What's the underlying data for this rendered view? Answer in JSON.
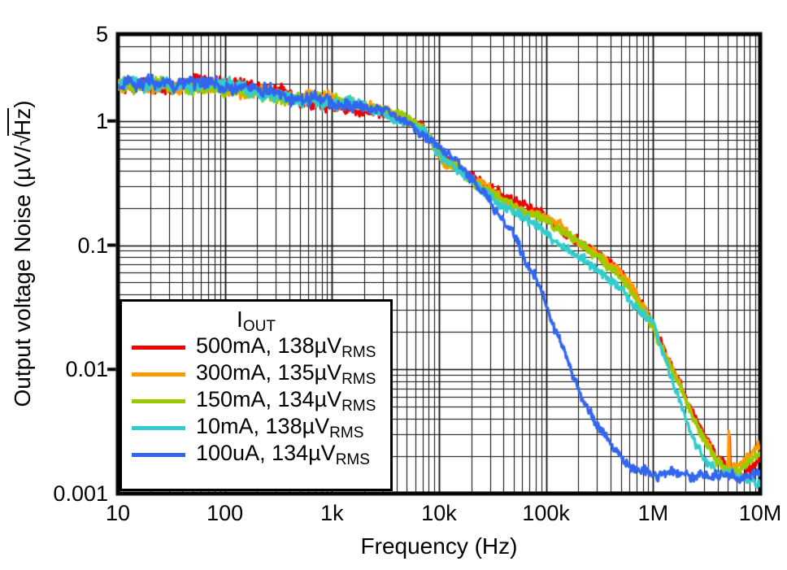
{
  "chart_data": {
    "type": "line",
    "title": "",
    "xlabel": "Frequency (Hz)",
    "ylabel": "Output voltage Noise (µV/√Hz)",
    "ylabel_pre": "Output voltage Noise (µV/",
    "ylabel_sqrt": "√",
    "ylabel_sqrt_arg": "Hz",
    "ylabel_post": ")",
    "x_scale": "log",
    "y_scale": "log",
    "xlim": [
      10,
      10000000
    ],
    "ylim": [
      0.001,
      5
    ],
    "grid": {
      "major": true,
      "minor": true,
      "color": "#000000"
    },
    "frame_color": "#000000",
    "x_ticks": [
      {
        "value": 10,
        "label": "10"
      },
      {
        "value": 100,
        "label": "100"
      },
      {
        "value": 1000,
        "label": "1k"
      },
      {
        "value": 10000,
        "label": "10k"
      },
      {
        "value": 100000,
        "label": "100k"
      },
      {
        "value": 1000000,
        "label": "1M"
      },
      {
        "value": 10000000,
        "label": "10M"
      }
    ],
    "y_ticks": [
      {
        "value": 5,
        "label": "5"
      },
      {
        "value": 1,
        "label": "1"
      },
      {
        "value": 0.1,
        "label": "0.1"
      },
      {
        "value": 0.01,
        "label": "0.01"
      },
      {
        "value": 0.001,
        "label": "0.001"
      }
    ],
    "legend": {
      "position": "bottom-left",
      "title_main": "I",
      "title_sub": "OUT"
    },
    "noise_amp_dec": 0.045,
    "line_width": 3.4,
    "series": [
      {
        "name": "500mA",
        "legend_main": "500mA, 138µV",
        "legend_sub": "RMS",
        "color": "#ee0000",
        "points": [
          [
            10,
            1.9
          ],
          [
            20,
            1.95
          ],
          [
            30,
            2.0
          ],
          [
            50,
            1.95
          ],
          [
            70,
            1.9
          ],
          [
            100,
            1.85
          ],
          [
            150,
            1.8
          ],
          [
            200,
            1.75
          ],
          [
            300,
            1.65
          ],
          [
            500,
            1.55
          ],
          [
            700,
            1.5
          ],
          [
            1000,
            1.4
          ],
          [
            1500,
            1.32
          ],
          [
            2000,
            1.27
          ],
          [
            3000,
            1.18
          ],
          [
            5000,
            1.0
          ],
          [
            7000,
            0.83
          ],
          [
            10000,
            0.52
          ],
          [
            15000,
            0.4
          ],
          [
            20000,
            0.34
          ],
          [
            30000,
            0.27
          ],
          [
            50000,
            0.21
          ],
          [
            70000,
            0.185
          ],
          [
            100000,
            0.16
          ],
          [
            150000,
            0.13
          ],
          [
            220000,
            0.105
          ],
          [
            300000,
            0.085
          ],
          [
            400000,
            0.068
          ],
          [
            500000,
            0.056
          ],
          [
            700000,
            0.038
          ],
          [
            1000000,
            0.021
          ],
          [
            1300000,
            0.013
          ],
          [
            1700000,
            0.008
          ],
          [
            2200000,
            0.005
          ],
          [
            3000000,
            0.0028
          ],
          [
            4000000,
            0.0019
          ],
          [
            5000000,
            0.00155
          ],
          [
            5150000,
            0.0019
          ],
          [
            5200000,
            0.0045
          ],
          [
            5250000,
            0.0019
          ],
          [
            5500000,
            0.0015
          ],
          [
            7000000,
            0.0015
          ],
          [
            10000000,
            0.002
          ]
        ]
      },
      {
        "name": "300mA",
        "legend_main": "300mA, 135µV",
        "legend_sub": "RMS",
        "color": "#ff9900",
        "points": [
          [
            10,
            1.9
          ],
          [
            20,
            1.95
          ],
          [
            30,
            2.0
          ],
          [
            50,
            1.95
          ],
          [
            70,
            1.9
          ],
          [
            100,
            1.85
          ],
          [
            150,
            1.8
          ],
          [
            200,
            1.75
          ],
          [
            300,
            1.65
          ],
          [
            500,
            1.55
          ],
          [
            700,
            1.5
          ],
          [
            1000,
            1.4
          ],
          [
            1500,
            1.32
          ],
          [
            2000,
            1.27
          ],
          [
            3000,
            1.18
          ],
          [
            5000,
            1.0
          ],
          [
            7000,
            0.83
          ],
          [
            10000,
            0.52
          ],
          [
            15000,
            0.4
          ],
          [
            20000,
            0.34
          ],
          [
            30000,
            0.27
          ],
          [
            50000,
            0.21
          ],
          [
            70000,
            0.185
          ],
          [
            100000,
            0.16
          ],
          [
            150000,
            0.13
          ],
          [
            220000,
            0.105
          ],
          [
            300000,
            0.085
          ],
          [
            400000,
            0.068
          ],
          [
            500000,
            0.056
          ],
          [
            700000,
            0.038
          ],
          [
            1000000,
            0.021
          ],
          [
            1300000,
            0.013
          ],
          [
            1700000,
            0.008
          ],
          [
            2200000,
            0.005
          ],
          [
            3000000,
            0.0028
          ],
          [
            4000000,
            0.0019
          ],
          [
            5000000,
            0.0016
          ],
          [
            5100000,
            0.0035
          ],
          [
            5200000,
            0.0016
          ],
          [
            7000000,
            0.0019
          ],
          [
            10000000,
            0.0026
          ]
        ]
      },
      {
        "name": "150mA",
        "legend_main": "150mA, 134µV",
        "legend_sub": "RMS",
        "color": "#99cc00",
        "points": [
          [
            10,
            1.9
          ],
          [
            20,
            1.95
          ],
          [
            30,
            2.0
          ],
          [
            50,
            1.95
          ],
          [
            70,
            1.9
          ],
          [
            100,
            1.85
          ],
          [
            150,
            1.8
          ],
          [
            200,
            1.75
          ],
          [
            300,
            1.65
          ],
          [
            500,
            1.55
          ],
          [
            700,
            1.5
          ],
          [
            1000,
            1.4
          ],
          [
            1500,
            1.32
          ],
          [
            2000,
            1.27
          ],
          [
            3000,
            1.18
          ],
          [
            5000,
            1.0
          ],
          [
            7000,
            0.83
          ],
          [
            10000,
            0.52
          ],
          [
            15000,
            0.4
          ],
          [
            20000,
            0.34
          ],
          [
            30000,
            0.27
          ],
          [
            50000,
            0.21
          ],
          [
            70000,
            0.185
          ],
          [
            100000,
            0.16
          ],
          [
            150000,
            0.13
          ],
          [
            220000,
            0.105
          ],
          [
            300000,
            0.085
          ],
          [
            400000,
            0.068
          ],
          [
            500000,
            0.056
          ],
          [
            700000,
            0.038
          ],
          [
            1000000,
            0.021
          ],
          [
            1300000,
            0.013
          ],
          [
            1700000,
            0.008
          ],
          [
            2200000,
            0.005
          ],
          [
            3000000,
            0.0028
          ],
          [
            4000000,
            0.0019
          ],
          [
            5000000,
            0.0016
          ],
          [
            7000000,
            0.0017
          ],
          [
            10000000,
            0.0022
          ]
        ]
      },
      {
        "name": "10mA",
        "legend_main": "10mA, 138µV",
        "legend_sub": "RMS",
        "color": "#33cccc",
        "points": [
          [
            10,
            1.9
          ],
          [
            20,
            1.95
          ],
          [
            30,
            2.0
          ],
          [
            50,
            1.95
          ],
          [
            70,
            1.9
          ],
          [
            100,
            1.85
          ],
          [
            150,
            1.8
          ],
          [
            200,
            1.75
          ],
          [
            300,
            1.65
          ],
          [
            500,
            1.55
          ],
          [
            700,
            1.5
          ],
          [
            1000,
            1.4
          ],
          [
            1500,
            1.32
          ],
          [
            2000,
            1.27
          ],
          [
            3000,
            1.18
          ],
          [
            5000,
            1.0
          ],
          [
            7000,
            0.83
          ],
          [
            10000,
            0.5
          ],
          [
            15000,
            0.39
          ],
          [
            20000,
            0.33
          ],
          [
            30000,
            0.25
          ],
          [
            50000,
            0.19
          ],
          [
            70000,
            0.16
          ],
          [
            100000,
            0.13
          ],
          [
            150000,
            0.1
          ],
          [
            220000,
            0.082
          ],
          [
            300000,
            0.066
          ],
          [
            400000,
            0.054
          ],
          [
            500000,
            0.045
          ],
          [
            700000,
            0.032
          ],
          [
            1000000,
            0.024
          ],
          [
            1300000,
            0.011
          ],
          [
            1700000,
            0.006
          ],
          [
            2200000,
            0.0032
          ],
          [
            3000000,
            0.0019
          ],
          [
            4000000,
            0.00145
          ],
          [
            7000000,
            0.0013
          ],
          [
            10000000,
            0.0012
          ]
        ]
      },
      {
        "name": "100uA",
        "legend_main": "100uA, 134µV",
        "legend_sub": "RMS",
        "color": "#3366ee",
        "points": [
          [
            10,
            1.9
          ],
          [
            20,
            1.95
          ],
          [
            30,
            2.0
          ],
          [
            50,
            1.95
          ],
          [
            70,
            1.9
          ],
          [
            100,
            1.85
          ],
          [
            150,
            1.8
          ],
          [
            200,
            1.75
          ],
          [
            300,
            1.65
          ],
          [
            500,
            1.55
          ],
          [
            700,
            1.5
          ],
          [
            1000,
            1.4
          ],
          [
            1500,
            1.32
          ],
          [
            2000,
            1.27
          ],
          [
            3000,
            1.25
          ],
          [
            5000,
            1.05
          ],
          [
            7000,
            0.85
          ],
          [
            10000,
            0.63
          ],
          [
            15000,
            0.48
          ],
          [
            20000,
            0.36
          ],
          [
            30000,
            0.23
          ],
          [
            40000,
            0.16
          ],
          [
            50000,
            0.12
          ],
          [
            70000,
            0.065
          ],
          [
            100000,
            0.033
          ],
          [
            150000,
            0.013
          ],
          [
            220000,
            0.006
          ],
          [
            300000,
            0.0038
          ],
          [
            500000,
            0.0021
          ],
          [
            700000,
            0.0016
          ],
          [
            1000000,
            0.00145
          ],
          [
            2000000,
            0.00135
          ],
          [
            5000000,
            0.0013
          ],
          [
            10000000,
            0.0014
          ]
        ]
      }
    ]
  }
}
